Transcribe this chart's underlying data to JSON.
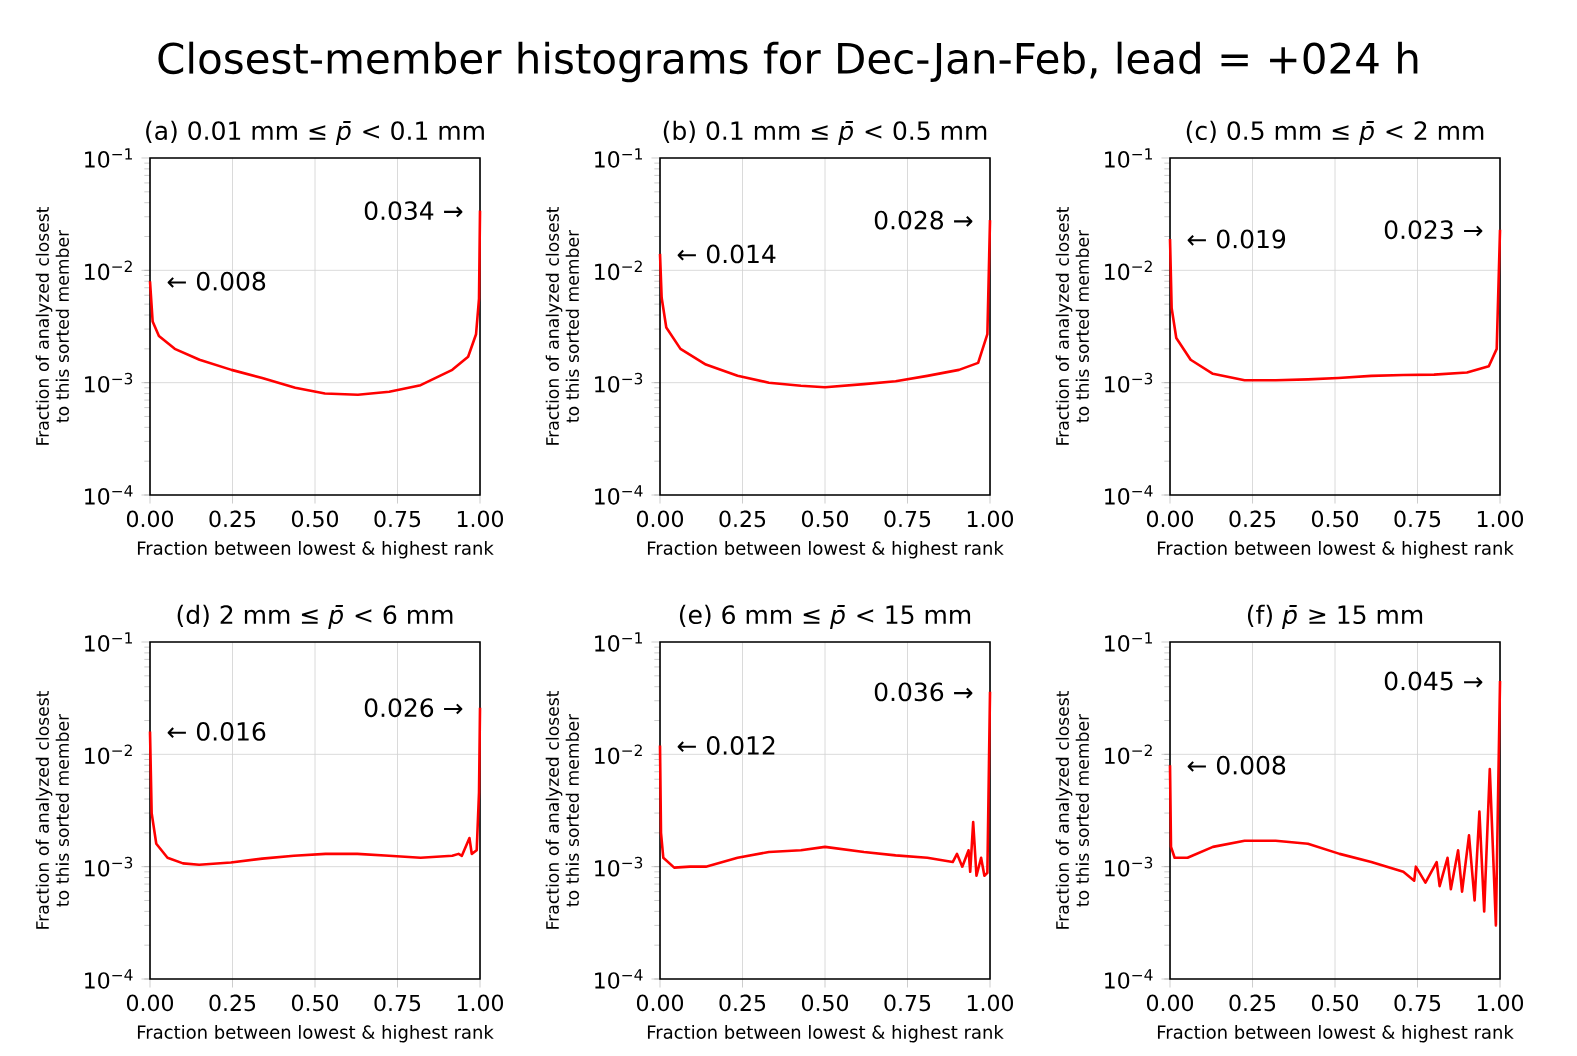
{
  "chart_data": [
    {
      "type": "line",
      "title": "Closest-member histograms for Dec-Jan-Feb, lead = +024 h",
      "subtitle": "(a) 0.01 mm ≤ *p̄* < 0.1 mm",
      "xlabel": "Fraction between lowest & highest rank",
      "ylabel": "Fraction of analyzed closest to this sorted member",
      "color": "#ff0000",
      "x": [
        0,
        0.008,
        0.027,
        0.075,
        0.15,
        0.247,
        0.34,
        0.44,
        0.53,
        0.63,
        0.725,
        0.82,
        0.916,
        0.964,
        0.988,
        0.997,
        1
      ],
      "values": [
        0.008,
        0.0035,
        0.0026,
        0.002,
        0.0016,
        0.0013,
        0.0011,
        0.0009,
        0.0008,
        0.00078,
        0.00083,
        0.00095,
        0.0013,
        0.0017,
        0.0027,
        0.0056,
        0.034
      ],
      "xlim": [
        0,
        1
      ],
      "ylim": [
        0.0001,
        0.1
      ],
      "log": "y",
      "grid": true,
      "xticks": [
        {
          "value": 0,
          "label": "0.00"
        },
        {
          "value": 0.25,
          "label": "0.25"
        },
        {
          "value": 0.5,
          "label": "0.50"
        },
        {
          "value": 0.75,
          "label": "0.75"
        },
        {
          "value": 1,
          "label": "1.00"
        }
      ],
      "yticks": [
        {
          "value": 0.0001,
          "label": "10$^{−4}$"
        },
        {
          "value": 0.001,
          "label": "10$^{−3}$"
        },
        {
          "value": 0.01,
          "label": "10$^{−2}$"
        },
        {
          "value": 0.1,
          "label": "10$^{−1}$"
        }
      ],
      "annotations": [
        "← 0.008",
        "0.034 →"
      ]
    },
    {
      "type": "line",
      "subtitle": "(b) 0.1 mm ≤ *p̄* < 0.5 mm",
      "xlabel": "Fraction between lowest & highest rank",
      "ylabel": "Fraction of analyzed closest to this sorted member",
      "color": "#ff0000",
      "x": [
        0,
        0.005,
        0.019,
        0.062,
        0.139,
        0.235,
        0.33,
        0.427,
        0.5,
        0.618,
        0.714,
        0.81,
        0.906,
        0.964,
        0.992,
        1
      ],
      "values": [
        0.014,
        0.0057,
        0.0031,
        0.002,
        0.00145,
        0.00115,
        0.001,
        0.00094,
        0.00091,
        0.00097,
        0.00103,
        0.00115,
        0.0013,
        0.0015,
        0.0027,
        0.028
      ],
      "xlim": [
        0,
        1
      ],
      "ylim": [
        0.0001,
        0.1
      ],
      "log": "y",
      "grid": true,
      "xticks": [
        {
          "value": 0,
          "label": "0.00"
        },
        {
          "value": 0.25,
          "label": "0.25"
        },
        {
          "value": 0.5,
          "label": "0.50"
        },
        {
          "value": 0.75,
          "label": "0.75"
        },
        {
          "value": 1,
          "label": "1.00"
        }
      ],
      "yticks": [
        {
          "value": 0.0001,
          "label": "10$^{−4}$"
        },
        {
          "value": 0.001,
          "label": "10$^{−3}$"
        },
        {
          "value": 0.01,
          "label": "10$^{−2}$"
        },
        {
          "value": 0.1,
          "label": "10$^{−1}$"
        }
      ],
      "annotations": [
        "← 0.014",
        "0.028 →"
      ]
    },
    {
      "type": "line",
      "subtitle": "(c) 0.5 mm ≤ *p̄* < 2 mm",
      "xlabel": "Fraction between lowest & highest rank",
      "ylabel": "Fraction of analyzed closest to this sorted member",
      "color": "#ff0000",
      "x": [
        0,
        0.005,
        0.019,
        0.0625,
        0.13,
        0.226,
        0.32,
        0.418,
        0.51,
        0.61,
        0.707,
        0.8,
        0.9,
        0.966,
        0.99,
        1
      ],
      "values": [
        0.019,
        0.0046,
        0.0025,
        0.0016,
        0.0012,
        0.00105,
        0.00105,
        0.00107,
        0.0011,
        0.00115,
        0.00117,
        0.00118,
        0.00123,
        0.0014,
        0.002,
        0.023
      ],
      "xlim": [
        0,
        1
      ],
      "ylim": [
        0.0001,
        0.1
      ],
      "log": "y",
      "grid": true,
      "xticks": [
        {
          "value": 0,
          "label": "0.00"
        },
        {
          "value": 0.25,
          "label": "0.25"
        },
        {
          "value": 0.5,
          "label": "0.50"
        },
        {
          "value": 0.75,
          "label": "0.75"
        },
        {
          "value": 1,
          "label": "1.00"
        }
      ],
      "yticks": [
        {
          "value": 0.0001,
          "label": "10$^{−4}$"
        },
        {
          "value": 0.001,
          "label": "10$^{−3}$"
        },
        {
          "value": 0.01,
          "label": "10$^{−2}$"
        },
        {
          "value": 0.1,
          "label": "10$^{−1}$"
        }
      ],
      "annotations": [
        "← 0.019",
        "0.023 →"
      ]
    },
    {
      "type": "line",
      "subtitle": "(d) 2 mm ≤ *p̄* <  6 mm",
      "xlabel": "Fraction between lowest & highest rank",
      "ylabel": "Fraction of analyzed closest to this sorted member",
      "color": "#ff0000",
      "x": [
        0,
        0.005,
        0.019,
        0.053,
        0.1,
        0.149,
        0.245,
        0.34,
        0.436,
        0.532,
        0.628,
        0.724,
        0.82,
        0.916,
        0.935,
        0.945,
        0.968,
        0.975,
        0.99,
        0.997,
        1
      ],
      "values": [
        0.016,
        0.003,
        0.0016,
        0.0012,
        0.00107,
        0.00104,
        0.00109,
        0.00118,
        0.00125,
        0.0013,
        0.0013,
        0.00125,
        0.0012,
        0.00125,
        0.0013,
        0.00125,
        0.0018,
        0.0013,
        0.0014,
        0.0046,
        0.026
      ],
      "xlim": [
        0,
        1
      ],
      "ylim": [
        0.0001,
        0.1
      ],
      "log": "y",
      "grid": true,
      "xticks": [
        {
          "value": 0,
          "label": "0.00"
        },
        {
          "value": 0.25,
          "label": "0.25"
        },
        {
          "value": 0.5,
          "label": "0.50"
        },
        {
          "value": 0.75,
          "label": "0.75"
        },
        {
          "value": 1,
          "label": "1.00"
        }
      ],
      "yticks": [
        {
          "value": 0.0001,
          "label": "10$^{−4}$"
        },
        {
          "value": 0.001,
          "label": "10$^{−3}$"
        },
        {
          "value": 0.01,
          "label": "10$^{−2}$"
        },
        {
          "value": 0.1,
          "label": "10$^{−1}$"
        }
      ],
      "annotations": [
        "← 0.016",
        "0.026 →"
      ]
    },
    {
      "type": "line",
      "subtitle": "(e) 6 mm ≤ *p̄* <  15 mm",
      "xlabel": "Fraction between lowest & highest rank",
      "ylabel": "Fraction of analyzed closest to this sorted member",
      "color": "#ff0000",
      "x": [
        0,
        0.003,
        0.01,
        0.043,
        0.091,
        0.139,
        0.235,
        0.33,
        0.427,
        0.5,
        0.618,
        0.714,
        0.81,
        0.887,
        0.9,
        0.916,
        0.935,
        0.94,
        0.949,
        0.959,
        0.973,
        0.983,
        0.992,
        1
      ],
      "values": [
        0.012,
        0.002,
        0.0012,
        0.00098,
        0.001,
        0.001,
        0.0012,
        0.00135,
        0.0014,
        0.0015,
        0.00135,
        0.00126,
        0.0012,
        0.0011,
        0.0013,
        0.001,
        0.0014,
        0.0009,
        0.0025,
        0.00083,
        0.0012,
        0.00083,
        0.00088,
        0.036
      ],
      "xlim": [
        0,
        1
      ],
      "ylim": [
        0.0001,
        0.1
      ],
      "log": "y",
      "grid": true,
      "xticks": [
        {
          "value": 0,
          "label": "0.00"
        },
        {
          "value": 0.25,
          "label": "0.25"
        },
        {
          "value": 0.5,
          "label": "0.50"
        },
        {
          "value": 0.75,
          "label": "0.75"
        },
        {
          "value": 1,
          "label": "1.00"
        }
      ],
      "yticks": [
        {
          "value": 0.0001,
          "label": "10$^{−4}$"
        },
        {
          "value": 0.001,
          "label": "10$^{−3}$"
        },
        {
          "value": 0.01,
          "label": "10$^{−2}$"
        },
        {
          "value": 0.1,
          "label": "10$^{−1}$"
        }
      ],
      "annotations": [
        "← 0.012",
        "0.036 →"
      ]
    },
    {
      "type": "line",
      "subtitle": "(f) *p̄* ≥  15 mm",
      "xlabel": "Fraction between lowest & highest rank",
      "ylabel": "Fraction of analyzed closest to this sorted member",
      "color": "#ff0000",
      "x": [
        0,
        0.003,
        0.014,
        0.053,
        0.13,
        0.226,
        0.32,
        0.418,
        0.514,
        0.61,
        0.707,
        0.74,
        0.745,
        0.774,
        0.808,
        0.817,
        0.841,
        0.851,
        0.873,
        0.885,
        0.906,
        0.923,
        0.9375,
        0.952,
        0.969,
        0.9875,
        1
      ],
      "values": [
        0.008,
        0.0015,
        0.0012,
        0.0012,
        0.0015,
        0.0017,
        0.0017,
        0.0016,
        0.0013,
        0.0011,
        0.0009,
        0.00075,
        0.001,
        0.00072,
        0.0011,
        0.00067,
        0.0012,
        0.00063,
        0.0014,
        0.0006,
        0.0019,
        0.0005,
        0.0031,
        0.0004,
        0.0074,
        0.0003,
        0.045
      ],
      "xlim": [
        0,
        1
      ],
      "ylim": [
        0.0001,
        0.1
      ],
      "log": "y",
      "grid": true,
      "xticks": [
        {
          "value": 0,
          "label": "0.00"
        },
        {
          "value": 0.25,
          "label": "0.25"
        },
        {
          "value": 0.5,
          "label": "0.50"
        },
        {
          "value": 0.75,
          "label": "0.75"
        },
        {
          "value": 1,
          "label": "1.00"
        }
      ],
      "yticks": [
        {
          "value": 0.0001,
          "label": "10$^{−4}$"
        },
        {
          "value": 0.001,
          "label": "10$^{−3}$"
        },
        {
          "value": 0.01,
          "label": "10$^{−2}$"
        },
        {
          "value": 0.1,
          "label": "10$^{−1}$"
        }
      ],
      "annotations": [
        "← 0.008",
        "0.045 →"
      ]
    }
  ]
}
